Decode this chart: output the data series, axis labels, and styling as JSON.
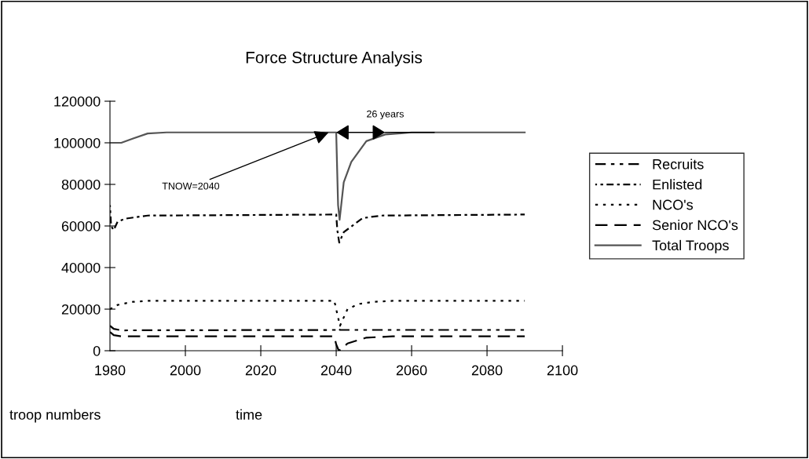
{
  "chart_data": {
    "type": "line",
    "title": "Force Structure Analysis",
    "xlabel": "time",
    "ylabel": "troop numbers",
    "xlim": [
      1980,
      2100
    ],
    "xticks": [
      1980,
      2000,
      2020,
      2040,
      2060,
      2080,
      2100
    ],
    "ylim": [
      0,
      120000
    ],
    "yticks": [
      0,
      20000,
      40000,
      60000,
      80000,
      100000,
      120000
    ],
    "grid": false,
    "legend": "right",
    "marker": "none",
    "annotations": [
      {
        "text": "TNOW=2040",
        "x": 2038,
        "y": 105000
      },
      {
        "text": "26 years",
        "x": 2053,
        "y": 105000
      }
    ],
    "series": [
      {
        "name": "Recruits",
        "color": "#000000",
        "line_style": "dashdot",
        "x": [
          1980,
          1981,
          1983,
          2040,
          2040.5,
          2041,
          2090
        ],
        "values": [
          12000,
          10500,
          9800,
          10000,
          11000,
          10000,
          10000
        ]
      },
      {
        "name": "Enlisted",
        "color": "#000000",
        "line_style": "dashdotdot",
        "x": [
          1980,
          1980.3,
          1981,
          1982,
          1984,
          1990,
          2040,
          2040.3,
          2040.8,
          2042,
          2047,
          2052,
          2090
        ],
        "values": [
          70000,
          60000,
          58000,
          62000,
          63500,
          65000,
          65500,
          58000,
          52000,
          57000,
          63800,
          65000,
          65500
        ]
      },
      {
        "name": "NCO's",
        "color": "#000000",
        "line_style": "dotted",
        "x": [
          1980,
          1982,
          1986,
          1990,
          2039.5,
          2040,
          2041,
          2043,
          2046,
          2050,
          2055,
          2090
        ],
        "values": [
          20000,
          22000,
          23500,
          24000,
          24000,
          20000,
          12000,
          20000,
          22500,
          23500,
          24000,
          24000
        ]
      },
      {
        "name": "Senior NCO's",
        "color": "#000000",
        "line_style": "dashed",
        "x": [
          1980,
          1981,
          1983,
          2039.5,
          2040,
          2040.7,
          2041.2,
          2043,
          2048,
          2055,
          2090
        ],
        "values": [
          9000,
          7500,
          6900,
          6900,
          3000,
          0,
          500,
          3500,
          6300,
          6900,
          6900
        ]
      },
      {
        "name": "Total Troops",
        "color": "#555555",
        "line_style": "solid",
        "x": [
          1980,
          1983,
          1986,
          1990,
          1995,
          2040,
          2040.5,
          2040.9,
          2042,
          2044,
          2048,
          2053,
          2060,
          2090
        ],
        "values": [
          100000,
          100000,
          102000,
          104500,
          105000,
          105000,
          70000,
          63000,
          81000,
          90800,
          100800,
          104000,
          105000,
          105000
        ]
      }
    ]
  }
}
